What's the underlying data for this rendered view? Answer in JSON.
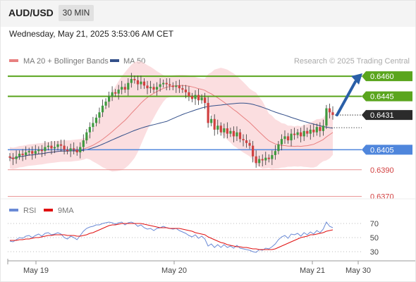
{
  "header": {
    "symbol": "AUD/USD",
    "timeframe": "30 MIN",
    "datetime": "Wednesday, May 21, 2025 3:53:06 AM CET"
  },
  "colors": {
    "candle_up": "#3f9a3f",
    "candle_down": "#d04040",
    "bollinger_fill": "#f9d3d6",
    "ma20": "#e88080",
    "ma50": "#34508a",
    "resistance": "#5aa51e",
    "support_blue": "#4f86dc",
    "support_red": "#e89090",
    "arrow": "#2a5fa8",
    "rsi": "#6a8ad6",
    "rsi_ma": "#e01010"
  },
  "chart_data": [
    {
      "type": "candlestick",
      "title": "",
      "legend": {
        "placement": "top-left",
        "entries": [
          "MA 20 + Bollinger Bands",
          "MA 50"
        ]
      },
      "watermark": "Research © 2025 Trading Central",
      "x_ticks": [
        "May 19",
        "May 20",
        "May 21",
        "May 30"
      ],
      "price_axis_labels": [
        "0.6460",
        "0.6445",
        "0.6431",
        "0.6405",
        "0.6390",
        "0.6370"
      ],
      "ylim": [
        0.6364,
        0.6468
      ],
      "levels": [
        {
          "price": 0.646,
          "label": "0.6460",
          "kind": "resistance"
        },
        {
          "price": 0.6445,
          "label": "0.6445",
          "kind": "resistance"
        },
        {
          "price": 0.6405,
          "label": "0.6405",
          "kind": "support-blue"
        },
        {
          "price": 0.639,
          "label": "0.6390",
          "kind": "support-red"
        },
        {
          "price": 0.637,
          "label": "0.6370",
          "kind": "support-red"
        }
      ],
      "current_price": {
        "price": 0.6431,
        "label": "0.6431"
      },
      "arrow": {
        "direction": "up",
        "from_price": 0.6431,
        "to_price": 0.6458
      },
      "candles_close": [
        0.6399,
        0.6398,
        0.64,
        0.6402,
        0.6401,
        0.6403,
        0.6404,
        0.6402,
        0.6404,
        0.6405,
        0.6404,
        0.6407,
        0.6408,
        0.6406,
        0.6407,
        0.6409,
        0.6408,
        0.6405,
        0.6404,
        0.6406,
        0.6405,
        0.6403,
        0.6407,
        0.6412,
        0.6418,
        0.6422,
        0.6425,
        0.6429,
        0.6433,
        0.6438,
        0.6441,
        0.6445,
        0.6448,
        0.6447,
        0.645,
        0.6452,
        0.645,
        0.6455,
        0.6458,
        0.6457,
        0.6454,
        0.6456,
        0.6453,
        0.6451,
        0.6452,
        0.645,
        0.6452,
        0.6454,
        0.6455,
        0.6454,
        0.6453,
        0.6452,
        0.6453,
        0.6451,
        0.645,
        0.6448,
        0.6445,
        0.6443,
        0.6446,
        0.6442,
        0.6444,
        0.644,
        0.6425,
        0.6428,
        0.642,
        0.6423,
        0.6418,
        0.6421,
        0.6417,
        0.6419,
        0.6415,
        0.6418,
        0.6413,
        0.6412,
        0.641,
        0.6408,
        0.64,
        0.6395,
        0.6398,
        0.6397,
        0.6399,
        0.6398,
        0.6401,
        0.6404,
        0.6409,
        0.6413,
        0.6415,
        0.6412,
        0.6417,
        0.6416,
        0.6418,
        0.6415,
        0.6419,
        0.6417,
        0.642,
        0.6418,
        0.6422,
        0.6419,
        0.6423,
        0.6436,
        0.6433,
        0.6431
      ]
    },
    {
      "type": "line",
      "title": "",
      "legend": {
        "placement": "top-left",
        "entries": [
          "RSI",
          "9MA"
        ]
      },
      "ylim": [
        20,
        80
      ],
      "y_ticks": [
        70,
        50,
        30
      ],
      "series": [
        {
          "name": "RSI",
          "values": [
            45,
            44,
            47,
            50,
            49,
            52,
            53,
            50,
            53,
            55,
            52,
            56,
            57,
            54,
            55,
            57,
            55,
            50,
            48,
            52,
            50,
            47,
            53,
            59,
            63,
            65,
            66,
            68,
            68,
            70,
            71,
            72,
            71,
            69,
            71,
            72,
            68,
            71,
            72,
            70,
            66,
            68,
            64,
            62,
            63,
            60,
            63,
            64,
            66,
            64,
            63,
            62,
            63,
            60,
            58,
            56,
            53,
            51,
            54,
            49,
            52,
            48,
            38,
            41,
            36,
            40,
            36,
            40,
            36,
            38,
            35,
            39,
            35,
            34,
            33,
            32,
            30,
            29,
            33,
            32,
            35,
            34,
            37,
            41,
            47,
            51,
            53,
            49,
            55,
            54,
            56,
            52,
            57,
            54,
            58,
            55,
            60,
            57,
            62,
            72,
            66,
            64
          ]
        },
        {
          "name": "9MA",
          "values": [
            46,
            46,
            46,
            47,
            47,
            48,
            48,
            49,
            50,
            50,
            51,
            52,
            53,
            53,
            54,
            54,
            54,
            54,
            53,
            53,
            53,
            52,
            52,
            53,
            54,
            56,
            57,
            59,
            61,
            63,
            65,
            67,
            68,
            68,
            69,
            70,
            70,
            70,
            70,
            70,
            70,
            70,
            69,
            68,
            67,
            66,
            65,
            64,
            64,
            64,
            63,
            63,
            63,
            63,
            62,
            61,
            60,
            59,
            57,
            56,
            55,
            54,
            51,
            49,
            47,
            45,
            43,
            42,
            40,
            39,
            38,
            37,
            37,
            36,
            36,
            35,
            34,
            34,
            33,
            33,
            33,
            33,
            33,
            34,
            36,
            38,
            40,
            42,
            44,
            46,
            48,
            50,
            51,
            52,
            54,
            54,
            55,
            56,
            57,
            59,
            60,
            61
          ]
        }
      ]
    }
  ]
}
